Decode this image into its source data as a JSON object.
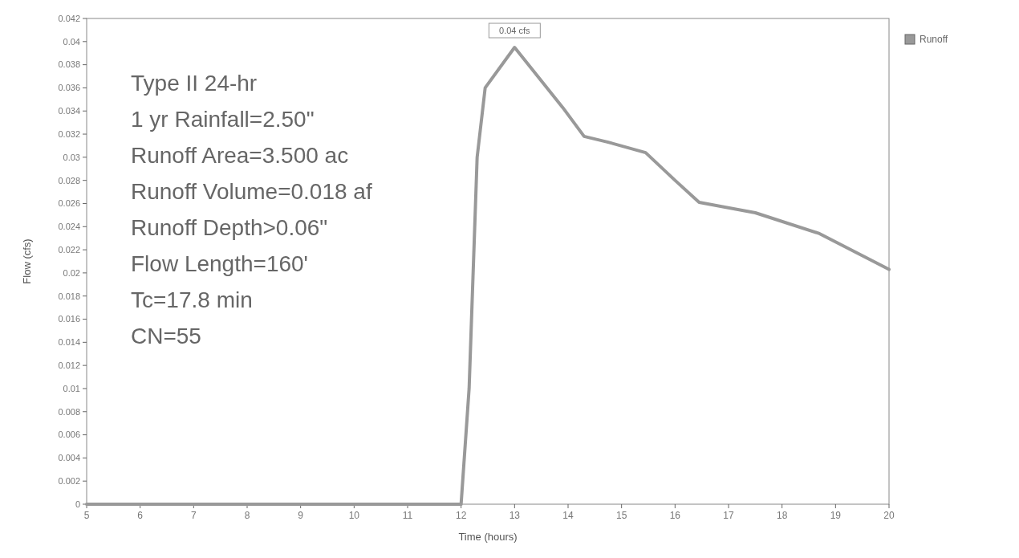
{
  "chart_data": {
    "type": "line",
    "xlabel": "Time (hours)",
    "ylabel": "Flow (cfs)",
    "x": [
      5,
      6,
      7,
      8,
      9,
      10,
      11,
      12,
      12.15,
      12.3,
      12.45,
      13,
      13.9,
      14.3,
      14.75,
      15.45,
      16,
      16.45,
      17.5,
      18.7,
      20
    ],
    "series": [
      {
        "name": "Runoff",
        "color": "#999999",
        "values": [
          0,
          0,
          0,
          0,
          0,
          0,
          0,
          0,
          0.01,
          0.03,
          0.036,
          0.0395,
          0.0343,
          0.0318,
          0.0313,
          0.0304,
          0.028,
          0.0261,
          0.0252,
          0.0234,
          0.0203
        ]
      }
    ],
    "xlim": [
      5,
      20
    ],
    "xticks": [
      5,
      6,
      7,
      8,
      9,
      10,
      11,
      12,
      13,
      14,
      15,
      16,
      17,
      18,
      19,
      20
    ],
    "ylim": [
      0,
      0.042
    ],
    "yticks": [
      0,
      0.002,
      0.004,
      0.006,
      0.008,
      0.01,
      0.012,
      0.014,
      0.016,
      0.018,
      0.02,
      0.022,
      0.024,
      0.026,
      0.028,
      0.03,
      0.032,
      0.034,
      0.036,
      0.038,
      0.04,
      0.042
    ],
    "annotations": [
      "Type II 24-hr",
      "1 yr Rainfall=2.50\"",
      "Runoff Area=3.500 ac",
      "Runoff Volume=0.018 af",
      "Runoff Depth>0.06\"",
      "Flow Length=160'",
      "Tc=17.8 min",
      "CN=55",
      {
        "text": "0.04 cfs",
        "x": 13,
        "y": 0.0395
      }
    ],
    "legend": "top right",
    "grid": false
  }
}
